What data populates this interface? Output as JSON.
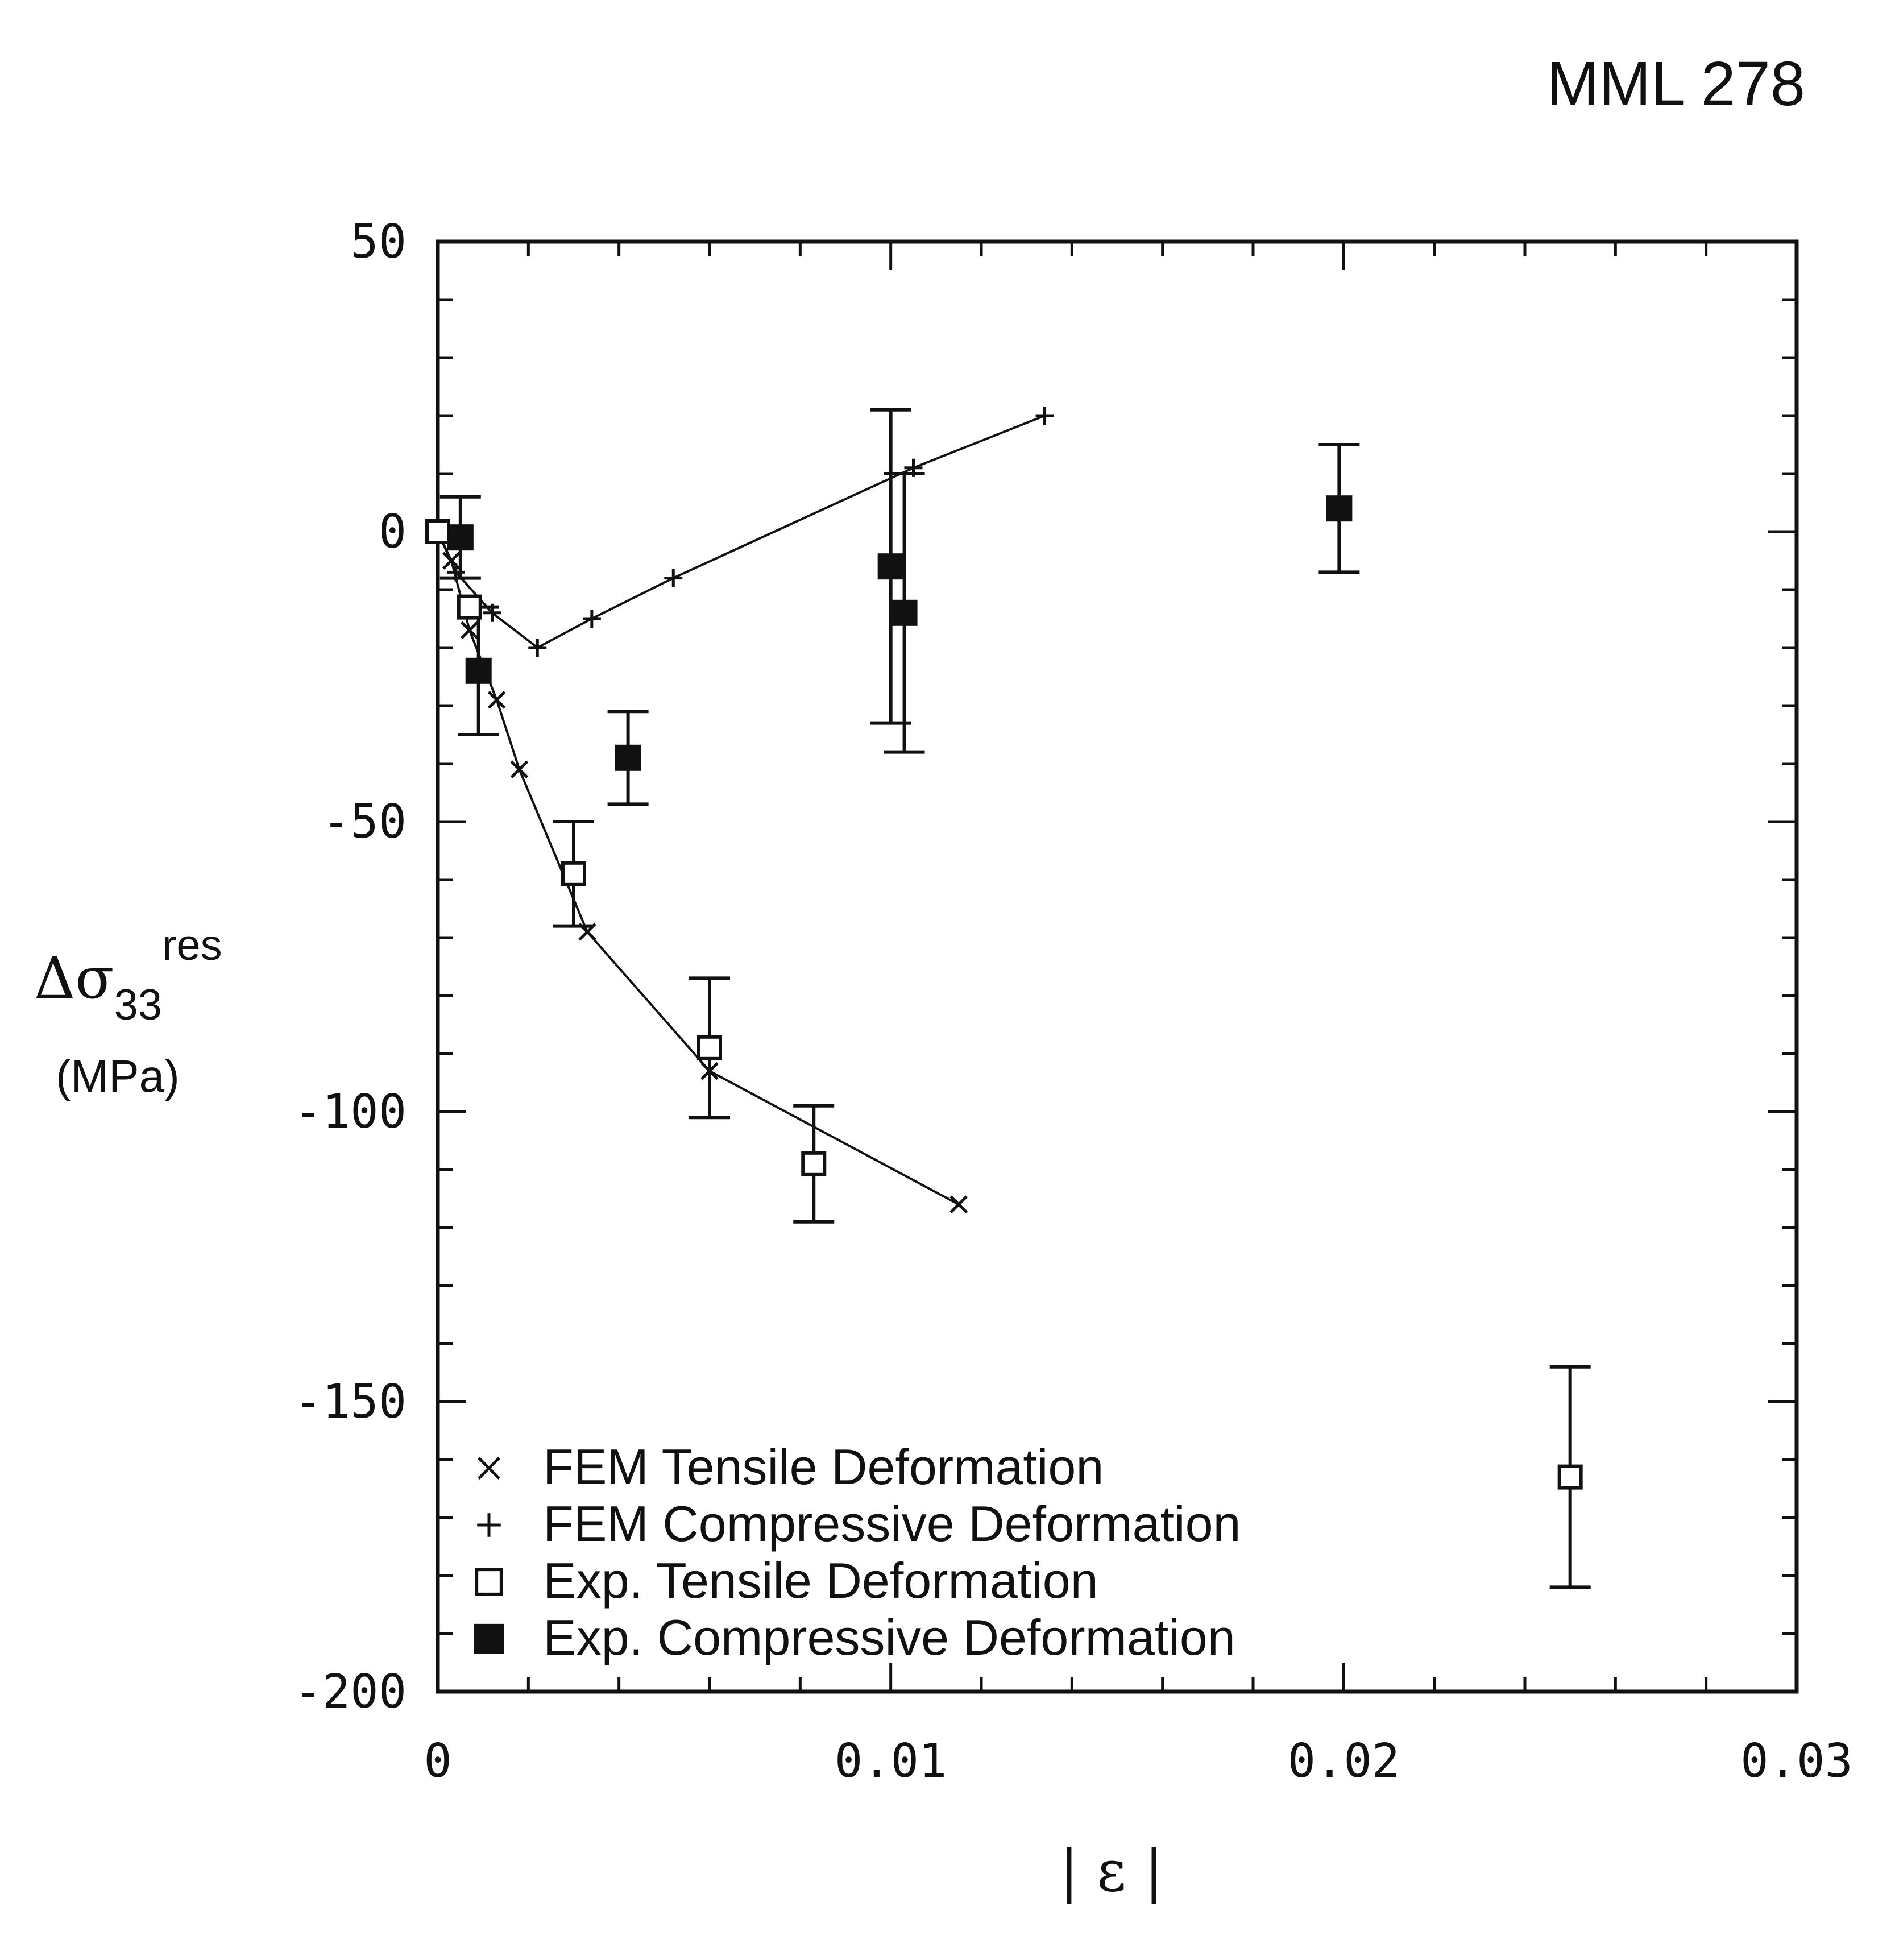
{
  "chart_data": {
    "type": "scatter",
    "title": "MML 278",
    "ylabel": {
      "symbol": "Δσ",
      "subscript": "33",
      "superscript": "res",
      "unit": "(MPa)"
    },
    "xlabel": "| ε |",
    "xlim": [
      0,
      0.03
    ],
    "ylim": [
      -200,
      50
    ],
    "x_ticks": [
      0,
      0.01,
      0.02,
      0.03
    ],
    "x_tick_labels": [
      "0",
      "0.01",
      "0.02",
      "0.03"
    ],
    "y_ticks": [
      50,
      0,
      -50,
      -100,
      -150,
      -200
    ],
    "y_tick_labels": [
      "50",
      "0",
      "-50",
      "-100",
      "-150",
      "-200"
    ],
    "x_minor_step": 0.002,
    "y_minor_step": 10,
    "grid": false,
    "legend_position": "bottom-left",
    "series": [
      {
        "name": "FEM Tensile Deformation",
        "marker": "x",
        "line": true,
        "points": [
          {
            "x": 0.0,
            "y": 0
          },
          {
            "x": 0.0003,
            "y": -5
          },
          {
            "x": 0.0007,
            "y": -17
          },
          {
            "x": 0.0013,
            "y": -29
          },
          {
            "x": 0.0018,
            "y": -41
          },
          {
            "x": 0.0033,
            "y": -69
          },
          {
            "x": 0.006,
            "y": -93
          },
          {
            "x": 0.0115,
            "y": -116
          }
        ]
      },
      {
        "name": "FEM Compressive Deformation",
        "marker": "+",
        "line": true,
        "points": [
          {
            "x": 0.0,
            "y": 0
          },
          {
            "x": 0.0004,
            "y": -7
          },
          {
            "x": 0.0012,
            "y": -14
          },
          {
            "x": 0.0022,
            "y": -20
          },
          {
            "x": 0.0034,
            "y": -15
          },
          {
            "x": 0.0052,
            "y": -8
          },
          {
            "x": 0.0105,
            "y": 11
          },
          {
            "x": 0.0134,
            "y": 20
          }
        ]
      },
      {
        "name": "Exp. Tensile Deformation",
        "marker": "open-square",
        "line": false,
        "points": [
          {
            "x": 0.0,
            "y": 0,
            "yerr": 0
          },
          {
            "x": 0.0007,
            "y": -13,
            "yerr": 0
          },
          {
            "x": 0.003,
            "y": -59,
            "yerr": 9
          },
          {
            "x": 0.006,
            "y": -89,
            "yerr": 12
          },
          {
            "x": 0.0083,
            "y": -109,
            "yerr": 10
          },
          {
            "x": 0.025,
            "y": -163,
            "yerr": 19
          }
        ]
      },
      {
        "name": "Exp. Compressive Deformation",
        "marker": "filled-square",
        "line": false,
        "points": [
          {
            "x": 0.0005,
            "y": -1,
            "yerr": 7
          },
          {
            "x": 0.0009,
            "y": -24,
            "yerr": 11
          },
          {
            "x": 0.0042,
            "y": -39,
            "yerr": 8
          },
          {
            "x": 0.01,
            "y": -6,
            "yerr": 27
          },
          {
            "x": 0.0103,
            "y": -14,
            "yerr": 24
          },
          {
            "x": 0.0199,
            "y": 4,
            "yerr": 11
          }
        ]
      }
    ]
  }
}
